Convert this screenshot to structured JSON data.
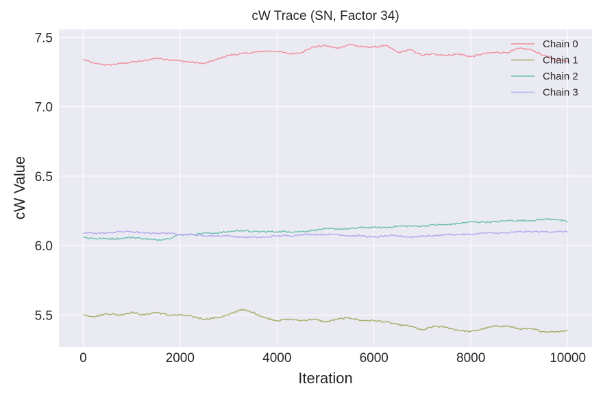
{
  "chart_data": {
    "type": "line",
    "title": "cW Trace (SN, Factor 34)",
    "xlabel": "Iteration",
    "ylabel": "cW Value",
    "xlim": [
      -500,
      10500
    ],
    "ylim": [
      5.27,
      7.556
    ],
    "xticks": [
      0,
      2000,
      4000,
      6000,
      8000,
      10000
    ],
    "yticks": [
      5.5,
      6.0,
      6.5,
      7.0,
      7.5
    ],
    "ytick_labels": [
      "5.5",
      "6.0",
      "6.5",
      "7.0",
      "7.5"
    ],
    "grid": true,
    "legend_position": "top-right",
    "background": "#eaeaf2",
    "series": [
      {
        "name": "Chain 0",
        "color": "#f08d9d",
        "x": [
          0,
          250,
          500,
          750,
          1000,
          1250,
          1500,
          1750,
          2000,
          2250,
          2500,
          2750,
          3000,
          3250,
          3500,
          3750,
          4000,
          4250,
          4500,
          4750,
          5000,
          5250,
          5500,
          5750,
          6000,
          6250,
          6500,
          6750,
          7000,
          7250,
          7500,
          7750,
          8000,
          8250,
          8500,
          8750,
          9000,
          9250,
          9500,
          9750,
          10000
        ],
        "y": [
          7.34,
          7.31,
          7.3,
          7.31,
          7.32,
          7.33,
          7.35,
          7.34,
          7.33,
          7.32,
          7.31,
          7.34,
          7.37,
          7.38,
          7.39,
          7.4,
          7.4,
          7.38,
          7.39,
          7.43,
          7.44,
          7.42,
          7.45,
          7.43,
          7.43,
          7.44,
          7.39,
          7.41,
          7.37,
          7.38,
          7.37,
          7.38,
          7.36,
          7.38,
          7.39,
          7.39,
          7.42,
          7.41,
          7.37,
          7.34,
          7.33
        ]
      },
      {
        "name": "Chain 1",
        "color": "#a4ad64",
        "x": [
          0,
          250,
          500,
          750,
          1000,
          1250,
          1500,
          1750,
          2000,
          2250,
          2500,
          2750,
          3000,
          3250,
          3500,
          3750,
          4000,
          4250,
          4500,
          4750,
          5000,
          5250,
          5500,
          5750,
          6000,
          6250,
          6500,
          6750,
          7000,
          7250,
          7500,
          7750,
          8000,
          8250,
          8500,
          8750,
          9000,
          9250,
          9500,
          9750,
          10000
        ],
        "y": [
          5.5,
          5.49,
          5.51,
          5.5,
          5.52,
          5.5,
          5.52,
          5.5,
          5.5,
          5.49,
          5.47,
          5.48,
          5.5,
          5.54,
          5.52,
          5.48,
          5.46,
          5.47,
          5.46,
          5.47,
          5.45,
          5.47,
          5.48,
          5.46,
          5.46,
          5.45,
          5.43,
          5.42,
          5.39,
          5.42,
          5.41,
          5.39,
          5.38,
          5.4,
          5.42,
          5.42,
          5.4,
          5.4,
          5.38,
          5.38,
          5.39
        ]
      },
      {
        "name": "Chain 2",
        "color": "#6bbeb3",
        "x": [
          0,
          250,
          500,
          750,
          1000,
          1250,
          1500,
          1750,
          2000,
          2250,
          2500,
          2750,
          3000,
          3250,
          3500,
          3750,
          4000,
          4250,
          4500,
          4750,
          5000,
          5250,
          5500,
          5750,
          6000,
          6250,
          6500,
          6750,
          7000,
          7250,
          7500,
          7750,
          8000,
          8250,
          8500,
          8750,
          9000,
          9250,
          9500,
          9750,
          10000
        ],
        "y": [
          6.06,
          6.05,
          6.05,
          6.05,
          6.06,
          6.05,
          6.04,
          6.05,
          6.08,
          6.08,
          6.09,
          6.09,
          6.1,
          6.11,
          6.1,
          6.1,
          6.1,
          6.1,
          6.1,
          6.11,
          6.12,
          6.12,
          6.12,
          6.13,
          6.13,
          6.13,
          6.14,
          6.14,
          6.14,
          6.15,
          6.15,
          6.16,
          6.17,
          6.17,
          6.17,
          6.18,
          6.18,
          6.18,
          6.19,
          6.19,
          6.17
        ]
      },
      {
        "name": "Chain 3",
        "color": "#b2a7f0",
        "x": [
          0,
          250,
          500,
          750,
          1000,
          1250,
          1500,
          1750,
          2000,
          2250,
          2500,
          2750,
          3000,
          3250,
          3500,
          3750,
          4000,
          4250,
          4500,
          4750,
          5000,
          5250,
          5500,
          5750,
          6000,
          6250,
          6500,
          6750,
          7000,
          7250,
          7500,
          7750,
          8000,
          8250,
          8500,
          8750,
          9000,
          9250,
          9500,
          9750,
          10000
        ],
        "y": [
          6.09,
          6.09,
          6.09,
          6.1,
          6.1,
          6.09,
          6.09,
          6.09,
          6.08,
          6.08,
          6.07,
          6.07,
          6.07,
          6.06,
          6.06,
          6.06,
          6.07,
          6.07,
          6.08,
          6.08,
          6.08,
          6.08,
          6.07,
          6.07,
          6.06,
          6.07,
          6.07,
          6.06,
          6.07,
          6.07,
          6.08,
          6.08,
          6.08,
          6.09,
          6.09,
          6.09,
          6.1,
          6.1,
          6.1,
          6.1,
          6.1
        ]
      }
    ]
  }
}
